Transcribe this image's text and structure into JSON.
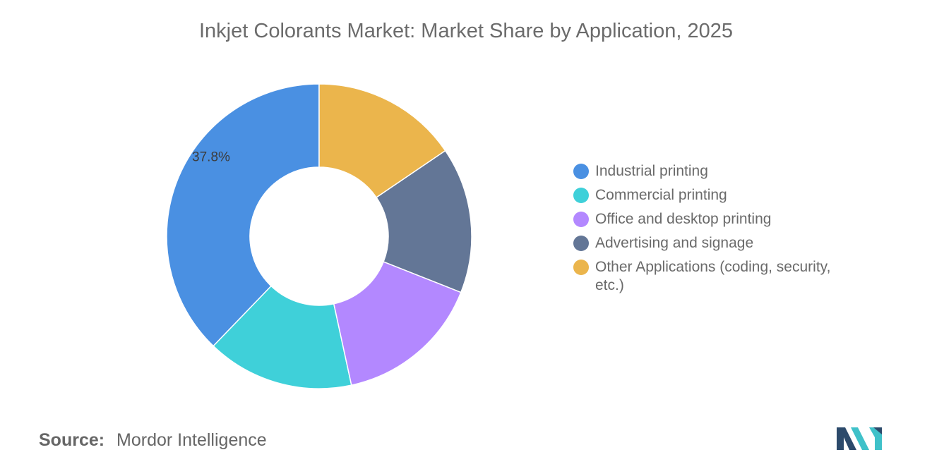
{
  "title": "Inkjet Colorants Market: Market Share by Application, 2025",
  "source": {
    "label": "Source:",
    "value": "Mordor Intelligence"
  },
  "chart_data": {
    "type": "pie",
    "donut": true,
    "legend_position": "right",
    "slices": [
      {
        "label": "Industrial printing",
        "value": 37.8,
        "color": "#4a90e2",
        "show_label": true
      },
      {
        "label": "Commercial printing",
        "value": 15.6,
        "color": "#3fd0d9",
        "show_label": false
      },
      {
        "label": "Office and desktop printing",
        "value": 15.6,
        "color": "#b388ff",
        "show_label": false
      },
      {
        "label": "Advertising and signage",
        "value": 15.5,
        "color": "#637696",
        "show_label": false
      },
      {
        "label": "Other Applications (coding, security, etc.)",
        "value": 15.5,
        "color": "#ebb54c",
        "show_label": false
      }
    ]
  },
  "logo": {
    "name": "mordor-intelligence-logo",
    "colors": [
      "#2c4a6b",
      "#3fc1c9"
    ]
  }
}
